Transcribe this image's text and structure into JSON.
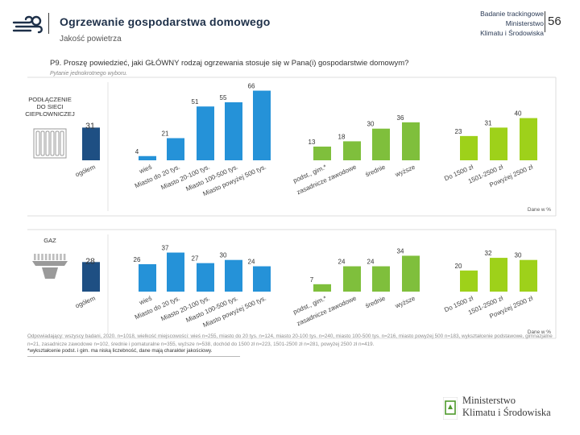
{
  "header": {
    "title": "Ogrzewanie gospodarstwa domowego",
    "subtitle": "Jakość powietrza",
    "tag_lines": [
      "Badanie trackingowe",
      "Ministerstwo",
      "Klimatu i Środowiska"
    ],
    "page_number": "56"
  },
  "question": {
    "text": "P9. Proszę powiedzieć, jaki GŁÓWNY rodzaj ogrzewania stosuje się w Pana(i) gospodarstwie domowym?",
    "note": "Pytanie jednokrotnego wyboru."
  },
  "colors": {
    "total": "#1e4f83",
    "place": "#2592d8",
    "education": "#7fbf3c",
    "income": "#9ed11a",
    "grid": "#cccccc",
    "label": "#333333"
  },
  "chart_data": [
    {
      "type": "bar",
      "title": "PODŁĄCZENIE DO SIECI CIEPŁOWNICZEJ",
      "title_lines": [
        "PODŁĄCZENIE",
        "DO SIECI",
        "CIEPŁOWNICZEJ"
      ],
      "icon": "radiator-icon",
      "note": "Dane w %",
      "ylim": [
        0,
        70
      ],
      "groups": [
        {
          "name": "total",
          "categories": [
            "ogółem"
          ],
          "values": [
            31
          ]
        },
        {
          "name": "place",
          "categories": [
            "wieś",
            "Miasto do 20 tys.",
            "Miasto 20-100 tys.",
            "Miasto 100-500 tys.",
            "Miasto powyżej 500 tys."
          ],
          "values": [
            4,
            21,
            51,
            55,
            66
          ]
        },
        {
          "name": "education",
          "categories": [
            "podst., gim.*",
            "zasadnicze zawodowe",
            "średnie",
            "wyższe"
          ],
          "values": [
            13,
            18,
            30,
            36
          ]
        },
        {
          "name": "income",
          "categories": [
            "Do 1500 zł",
            "1501-2500 zł",
            "Powyżej 2500 zł"
          ],
          "values": [
            23,
            31,
            40
          ]
        }
      ]
    },
    {
      "type": "bar",
      "title": "GAZ",
      "title_lines": [
        "GAZ"
      ],
      "icon": "gas-flame-icon",
      "note": "Dane w %",
      "ylim": [
        0,
        70
      ],
      "groups": [
        {
          "name": "total",
          "categories": [
            "ogółem"
          ],
          "values": [
            28
          ]
        },
        {
          "name": "place",
          "categories": [
            "wieś",
            "Miasto do 20 tys.",
            "Miasto 20-100 tys.",
            "Miasto 100-500 tys.",
            "Miasto powyżej 500 tys."
          ],
          "values": [
            26,
            37,
            27,
            30,
            24
          ]
        },
        {
          "name": "education",
          "categories": [
            "podst., gim.*",
            "zasadnicze zawodowe",
            "średnie",
            "wyższe"
          ],
          "values": [
            7,
            24,
            24,
            34
          ]
        },
        {
          "name": "income",
          "categories": [
            "Do 1500 zł",
            "1501-2500 zł",
            "Powyżej 2500 zł"
          ],
          "values": [
            20,
            32,
            30
          ]
        }
      ]
    }
  ],
  "footnotes": {
    "base": "Odpowiadający: wszyscy badani, 2020. n=1018, wielkość miejscowości: wieś n=255, miasto do 20 tys. n=124, miasto 20-100 tys. n=240, miasto 100-500 tys. n=216, miasto powyżej 500 n=183, wykształcenie podstawowe, gimnazjalne n=21, zasadnicze zawodowe n=102, średnie i pomaturalne n=355, wyższe n=538, dochód do 1500 zł n=223, 1501-2500 zł n=281, powyżej 2500 zł n=419.",
    "asterisk": "*wykształcenie podst. i gim. ma niską liczebność, dane mają charakter jakościowy."
  },
  "ministry": {
    "line1": "Ministerstwo",
    "line2": "Klimatu i Środowiska"
  }
}
